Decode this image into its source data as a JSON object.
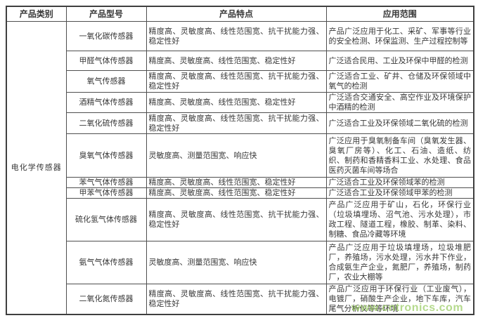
{
  "table": {
    "headers": [
      "产品类别",
      "产品型号",
      "产品特点",
      "应用范围"
    ],
    "category": "电化学传感器",
    "rows": [
      {
        "model": "一氧化碳传感器",
        "features": "精度高、灵敏度高、线性范围宽、抗干扰能力强、稳定性好",
        "application": "产品广泛应用于化工、采矿、军事等行业的安全检测、环保监测、生产过程控制等"
      },
      {
        "model": "甲醛气体传感器",
        "features": "精度高、灵敏度高、线性范围宽、稳定性好",
        "application": "广泛适合民用、工业及环保中甲醛的检测"
      },
      {
        "model": "氧气传感器",
        "features": "精度高、灵敏度高、线性范围宽、抗干扰能力强、稳定性好",
        "application": "广泛适合工业、矿井、仓储及环保领域中氧气的检测"
      },
      {
        "model": "酒精气体传感器",
        "features": "精度高、灵敏度高、线性范围宽、稳定性好",
        "application": "广泛适合交通安全、高空作业及环境保护中酒精的检测"
      },
      {
        "model": "二氧化硫传感器",
        "features": "精度高、灵敏度高、线性范围宽、抗干扰能力强、稳定性好",
        "application": "广泛适合工业及环保领域二氧化硫的检测"
      },
      {
        "model": "臭氧气体传感器",
        "features": "灵敏度高、测量范围宽、响应快",
        "application": "广泛应用于臭氧制备车间（臭氧发生器、臭氧厂房等）、化工、石油、造纸、纺织、制药和香精香料工业、水处理、食品医药灭菌车间等场合"
      },
      {
        "model": "苯气气体传感器",
        "features": "精度高、灵敏度高、线性范围宽、稳定性好",
        "application": "广泛适合工业及环保领域苯的检测"
      },
      {
        "model": "甲苯气体传感器",
        "features": "精度高、灵敏度高、线性范围宽、稳定性好",
        "application": "广泛适合工业及环保领域甲苯的检测"
      },
      {
        "model": "硫化氢气体传感器",
        "features": "精度高、灵敏度高、线性范围宽、抗干扰能力强、稳定性好",
        "application": "产品广泛应用于矿山，石化，环保行业（垃圾填埋场、沼气池、污水处理），市政工程、隧道工程，橡胶、制革、染料、制糖、食品冷藏等环境"
      },
      {
        "model": "氨气气体传感器",
        "features": "灵敏度高、测量范围宽、响应快",
        "application": "产品广泛应用于垃圾填埋场，垃圾堆肥厂，养殖场，污水处理，污水井下作业，合成氨生产企业，氮肥厂，养殖场，制药厂，农业大棚等"
      },
      {
        "model": "二氧化氮传感器",
        "features": "精度高、灵敏度高、线性范围宽、抗干扰能力强、稳定性好",
        "application": "产品广泛应用于环保行业（工业废气），电镀厂，硝酸生产企业，地下车库，汽车尾气分析仪等等环境"
      }
    ]
  },
  "watermark": {
    "text": "www.cntronics.com",
    "color": "#8dc650"
  },
  "colors": {
    "border": "#4f4f4f",
    "text": "#383838",
    "background": "#ffffff"
  }
}
